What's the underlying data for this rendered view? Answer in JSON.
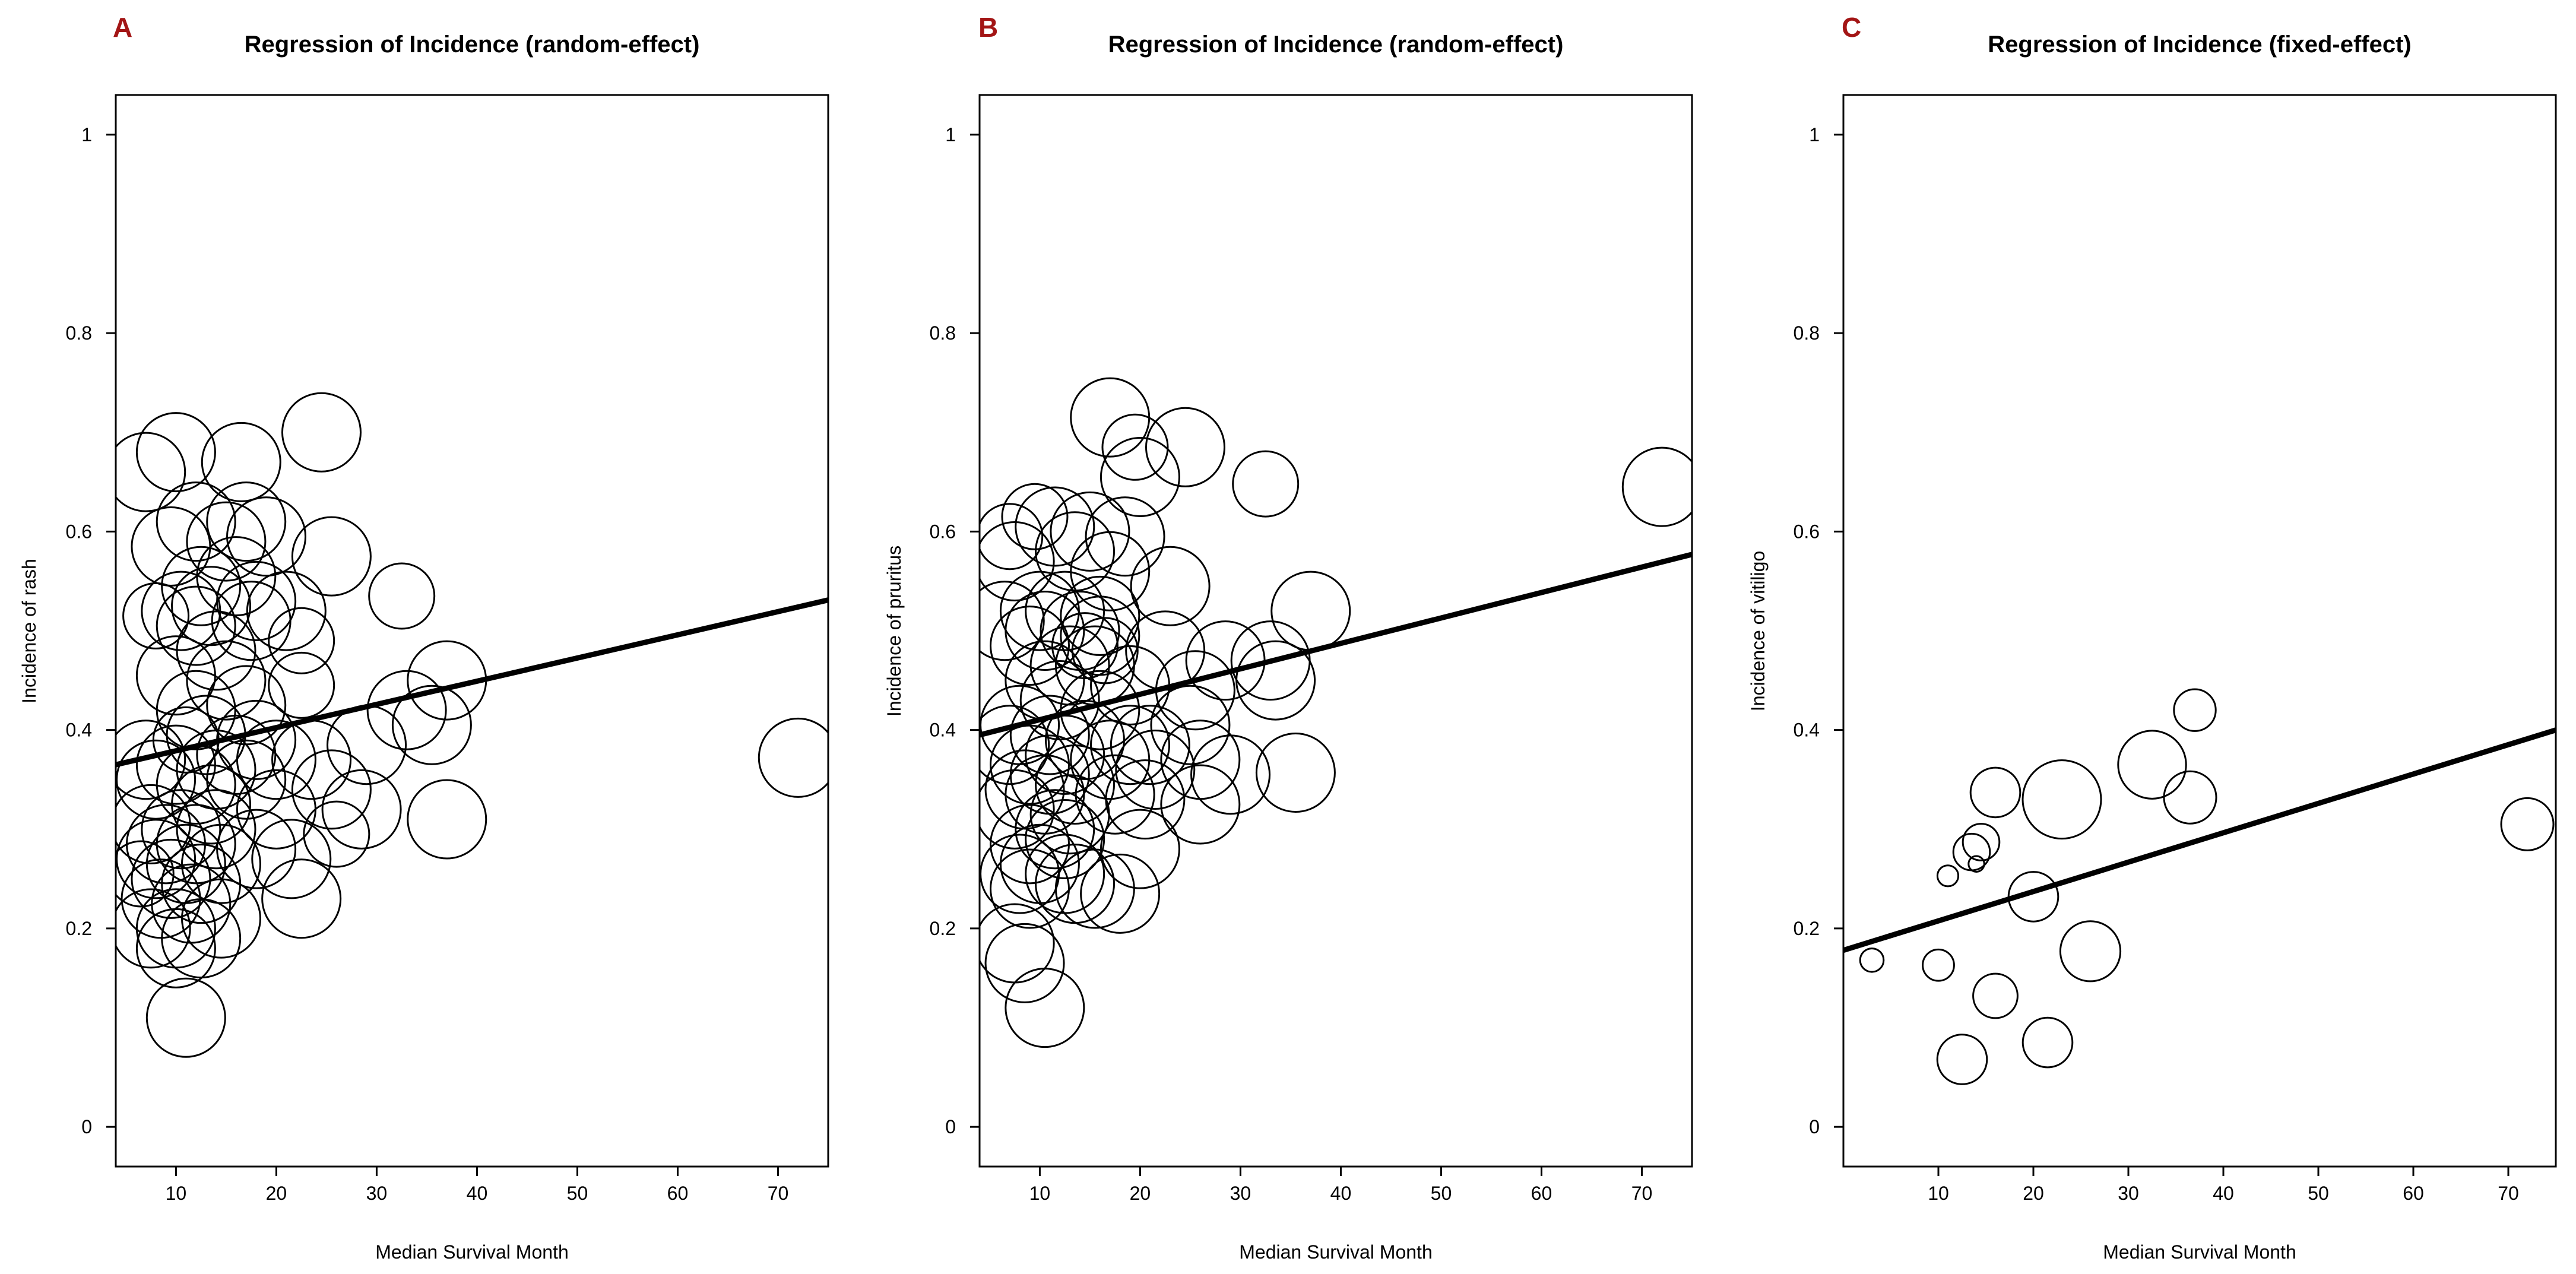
{
  "chart_data": [
    {
      "type": "scatter",
      "panel_label": "A",
      "title": "Regression of Incidence (random-effect)",
      "xlabel": "Median Survival Month",
      "ylabel": "Incidence of rash",
      "xlim": [
        4,
        75
      ],
      "ylim": [
        -0.04,
        1.04
      ],
      "xticks": [
        10,
        20,
        30,
        40,
        50,
        60,
        70
      ],
      "yticks": [
        0,
        0.2,
        0.4,
        0.6,
        0.8,
        1
      ],
      "grid": false,
      "regression_line": {
        "x": [
          4,
          75
        ],
        "y": [
          0.365,
          0.531
        ]
      },
      "points": [
        {
          "x": 7,
          "y": 0.66,
          "w": 3
        },
        {
          "x": 10,
          "y": 0.68,
          "w": 3
        },
        {
          "x": 16.5,
          "y": 0.67,
          "w": 3
        },
        {
          "x": 24.5,
          "y": 0.7,
          "w": 3
        },
        {
          "x": 12,
          "y": 0.61,
          "w": 3
        },
        {
          "x": 17,
          "y": 0.61,
          "w": 3
        },
        {
          "x": 19,
          "y": 0.595,
          "w": 3
        },
        {
          "x": 9.5,
          "y": 0.585,
          "w": 3
        },
        {
          "x": 15,
          "y": 0.59,
          "w": 3
        },
        {
          "x": 25.5,
          "y": 0.575,
          "w": 3
        },
        {
          "x": 12.5,
          "y": 0.545,
          "w": 3
        },
        {
          "x": 16,
          "y": 0.555,
          "w": 3
        },
        {
          "x": 32.5,
          "y": 0.535,
          "w": 2.5
        },
        {
          "x": 10.5,
          "y": 0.52,
          "w": 3
        },
        {
          "x": 13.5,
          "y": 0.525,
          "w": 3
        },
        {
          "x": 18,
          "y": 0.53,
          "w": 3
        },
        {
          "x": 21,
          "y": 0.52,
          "w": 3
        },
        {
          "x": 8,
          "y": 0.515,
          "w": 2.5
        },
        {
          "x": 12,
          "y": 0.505,
          "w": 3
        },
        {
          "x": 17.5,
          "y": 0.51,
          "w": 3
        },
        {
          "x": 22.5,
          "y": 0.49,
          "w": 2.5
        },
        {
          "x": 14,
          "y": 0.48,
          "w": 3
        },
        {
          "x": 10,
          "y": 0.455,
          "w": 3
        },
        {
          "x": 15,
          "y": 0.45,
          "w": 3
        },
        {
          "x": 22.5,
          "y": 0.445,
          "w": 2.5
        },
        {
          "x": 37,
          "y": 0.45,
          "w": 3
        },
        {
          "x": 12,
          "y": 0.42,
          "w": 3
        },
        {
          "x": 17,
          "y": 0.425,
          "w": 3
        },
        {
          "x": 33,
          "y": 0.42,
          "w": 3
        },
        {
          "x": 35.5,
          "y": 0.405,
          "w": 3
        },
        {
          "x": 29,
          "y": 0.385,
          "w": 3
        },
        {
          "x": 13,
          "y": 0.395,
          "w": 3
        },
        {
          "x": 18,
          "y": 0.39,
          "w": 3
        },
        {
          "x": 11,
          "y": 0.39,
          "w": 2.5
        },
        {
          "x": 16,
          "y": 0.375,
          "w": 3
        },
        {
          "x": 20,
          "y": 0.37,
          "w": 3
        },
        {
          "x": 7,
          "y": 0.37,
          "w": 3
        },
        {
          "x": 10,
          "y": 0.365,
          "w": 3
        },
        {
          "x": 14,
          "y": 0.36,
          "w": 3
        },
        {
          "x": 23.5,
          "y": 0.37,
          "w": 3
        },
        {
          "x": 72,
          "y": 0.372,
          "w": 3
        },
        {
          "x": 8,
          "y": 0.35,
          "w": 3
        },
        {
          "x": 12,
          "y": 0.345,
          "w": 3
        },
        {
          "x": 17,
          "y": 0.35,
          "w": 3
        },
        {
          "x": 25.5,
          "y": 0.34,
          "w": 3
        },
        {
          "x": 13.5,
          "y": 0.325,
          "w": 3
        },
        {
          "x": 20,
          "y": 0.32,
          "w": 3
        },
        {
          "x": 28.5,
          "y": 0.32,
          "w": 3
        },
        {
          "x": 37,
          "y": 0.31,
          "w": 3
        },
        {
          "x": 7.5,
          "y": 0.305,
          "w": 3
        },
        {
          "x": 10.5,
          "y": 0.3,
          "w": 3
        },
        {
          "x": 14,
          "y": 0.3,
          "w": 3
        },
        {
          "x": 26,
          "y": 0.295,
          "w": 2.5
        },
        {
          "x": 9,
          "y": 0.285,
          "w": 3
        },
        {
          "x": 12,
          "y": 0.285,
          "w": 3
        },
        {
          "x": 18,
          "y": 0.28,
          "w": 3
        },
        {
          "x": 21.5,
          "y": 0.27,
          "w": 3
        },
        {
          "x": 8,
          "y": 0.27,
          "w": 3
        },
        {
          "x": 11,
          "y": 0.265,
          "w": 3
        },
        {
          "x": 14.5,
          "y": 0.265,
          "w": 3
        },
        {
          "x": 6.5,
          "y": 0.255,
          "w": 2.5
        },
        {
          "x": 9.5,
          "y": 0.25,
          "w": 3
        },
        {
          "x": 12.5,
          "y": 0.245,
          "w": 3
        },
        {
          "x": 22.5,
          "y": 0.23,
          "w": 3
        },
        {
          "x": 8.5,
          "y": 0.23,
          "w": 3
        },
        {
          "x": 11.5,
          "y": 0.225,
          "w": 3
        },
        {
          "x": 14.5,
          "y": 0.21,
          "w": 3
        },
        {
          "x": 7.5,
          "y": 0.2,
          "w": 3
        },
        {
          "x": 10,
          "y": 0.2,
          "w": 3
        },
        {
          "x": 12.5,
          "y": 0.19,
          "w": 3
        },
        {
          "x": 10,
          "y": 0.18,
          "w": 3
        },
        {
          "x": 11,
          "y": 0.11,
          "w": 3
        }
      ]
    },
    {
      "type": "scatter",
      "panel_label": "B",
      "title": "Regression of Incidence (random-effect)",
      "xlabel": "Median Survival Month",
      "ylabel": "Incidence of pruritus",
      "xlim": [
        4,
        75
      ],
      "ylim": [
        -0.04,
        1.04
      ],
      "xticks": [
        10,
        20,
        30,
        40,
        50,
        60,
        70
      ],
      "yticks": [
        0,
        0.2,
        0.4,
        0.6,
        0.8,
        1
      ],
      "grid": false,
      "regression_line": {
        "x": [
          4,
          75
        ],
        "y": [
          0.395,
          0.577
        ]
      },
      "points": [
        {
          "x": 17,
          "y": 0.715,
          "w": 3
        },
        {
          "x": 19.5,
          "y": 0.685,
          "w": 2.5
        },
        {
          "x": 24.5,
          "y": 0.685,
          "w": 3
        },
        {
          "x": 20,
          "y": 0.655,
          "w": 3
        },
        {
          "x": 32.5,
          "y": 0.648,
          "w": 2.5
        },
        {
          "x": 72,
          "y": 0.645,
          "w": 3
        },
        {
          "x": 9.5,
          "y": 0.615,
          "w": 2.5
        },
        {
          "x": 11.5,
          "y": 0.605,
          "w": 3
        },
        {
          "x": 15,
          "y": 0.6,
          "w": 3
        },
        {
          "x": 18.5,
          "y": 0.595,
          "w": 3
        },
        {
          "x": 7,
          "y": 0.595,
          "w": 2.5
        },
        {
          "x": 13.5,
          "y": 0.58,
          "w": 3
        },
        {
          "x": 7.5,
          "y": 0.57,
          "w": 3
        },
        {
          "x": 17,
          "y": 0.56,
          "w": 3
        },
        {
          "x": 23,
          "y": 0.545,
          "w": 3
        },
        {
          "x": 10,
          "y": 0.52,
          "w": 3
        },
        {
          "x": 12.5,
          "y": 0.52,
          "w": 3
        },
        {
          "x": 16,
          "y": 0.515,
          "w": 3
        },
        {
          "x": 37,
          "y": 0.52,
          "w": 3
        },
        {
          "x": 6.5,
          "y": 0.51,
          "w": 3
        },
        {
          "x": 10.5,
          "y": 0.5,
          "w": 3
        },
        {
          "x": 14,
          "y": 0.5,
          "w": 3
        },
        {
          "x": 16,
          "y": 0.495,
          "w": 3
        },
        {
          "x": 9,
          "y": 0.485,
          "w": 3
        },
        {
          "x": 14.5,
          "y": 0.485,
          "w": 2.5
        },
        {
          "x": 16.5,
          "y": 0.48,
          "w": 2.5
        },
        {
          "x": 22.5,
          "y": 0.48,
          "w": 3
        },
        {
          "x": 28.5,
          "y": 0.47,
          "w": 3
        },
        {
          "x": 33,
          "y": 0.47,
          "w": 3
        },
        {
          "x": 13,
          "y": 0.465,
          "w": 3
        },
        {
          "x": 15.5,
          "y": 0.465,
          "w": 3
        },
        {
          "x": 10.5,
          "y": 0.45,
          "w": 3
        },
        {
          "x": 19,
          "y": 0.445,
          "w": 3
        },
        {
          "x": 25.5,
          "y": 0.44,
          "w": 3
        },
        {
          "x": 33.5,
          "y": 0.45,
          "w": 3
        },
        {
          "x": 12,
          "y": 0.43,
          "w": 3
        },
        {
          "x": 16,
          "y": 0.42,
          "w": 3
        },
        {
          "x": 25,
          "y": 0.405,
          "w": 3
        },
        {
          "x": 8,
          "y": 0.405,
          "w": 3
        },
        {
          "x": 11,
          "y": 0.395,
          "w": 3
        },
        {
          "x": 14.5,
          "y": 0.39,
          "w": 3
        },
        {
          "x": 19,
          "y": 0.385,
          "w": 3
        },
        {
          "x": 21,
          "y": 0.385,
          "w": 3
        },
        {
          "x": 7,
          "y": 0.385,
          "w": 3
        },
        {
          "x": 12.5,
          "y": 0.375,
          "w": 3
        },
        {
          "x": 17,
          "y": 0.37,
          "w": 3
        },
        {
          "x": 26,
          "y": 0.37,
          "w": 3
        },
        {
          "x": 9,
          "y": 0.365,
          "w": 3
        },
        {
          "x": 11,
          "y": 0.355,
          "w": 3
        },
        {
          "x": 21.5,
          "y": 0.36,
          "w": 3
        },
        {
          "x": 29,
          "y": 0.355,
          "w": 3
        },
        {
          "x": 35.5,
          "y": 0.357,
          "w": 3
        },
        {
          "x": 13.5,
          "y": 0.345,
          "w": 3
        },
        {
          "x": 8.5,
          "y": 0.34,
          "w": 3
        },
        {
          "x": 10.5,
          "y": 0.335,
          "w": 3
        },
        {
          "x": 17.5,
          "y": 0.335,
          "w": 3
        },
        {
          "x": 20.5,
          "y": 0.33,
          "w": 3
        },
        {
          "x": 26,
          "y": 0.325,
          "w": 3
        },
        {
          "x": 7.5,
          "y": 0.32,
          "w": 3
        },
        {
          "x": 13,
          "y": 0.315,
          "w": 3
        },
        {
          "x": 11.5,
          "y": 0.3,
          "w": 3
        },
        {
          "x": 12.5,
          "y": 0.29,
          "w": 3
        },
        {
          "x": 9,
          "y": 0.285,
          "w": 3
        },
        {
          "x": 20,
          "y": 0.28,
          "w": 3
        },
        {
          "x": 10,
          "y": 0.265,
          "w": 3
        },
        {
          "x": 12.5,
          "y": 0.255,
          "w": 3
        },
        {
          "x": 8,
          "y": 0.255,
          "w": 3
        },
        {
          "x": 13.5,
          "y": 0.245,
          "w": 3
        },
        {
          "x": 9,
          "y": 0.24,
          "w": 3
        },
        {
          "x": 15.5,
          "y": 0.24,
          "w": 3
        },
        {
          "x": 18,
          "y": 0.235,
          "w": 3
        },
        {
          "x": 7.5,
          "y": 0.185,
          "w": 3
        },
        {
          "x": 8.5,
          "y": 0.165,
          "w": 3
        },
        {
          "x": 10.5,
          "y": 0.12,
          "w": 3
        }
      ]
    },
    {
      "type": "scatter",
      "panel_label": "C",
      "title": "Regression of Incidence (fixed-effect)",
      "xlabel": "Median Survival Month",
      "ylabel": "Incidence of vitiligo",
      "xlim": [
        0,
        75
      ],
      "ylim": [
        -0.04,
        1.04
      ],
      "xticks": [
        10,
        20,
        30,
        40,
        50,
        60,
        70
      ],
      "yticks": [
        0,
        0.2,
        0.4,
        0.6,
        0.8,
        1
      ],
      "grid": false,
      "regression_line": {
        "x": [
          0,
          75
        ],
        "y": [
          0.178,
          0.4
        ]
      },
      "points": [
        {
          "x": 37,
          "y": 0.42,
          "w": 1.6
        },
        {
          "x": 32.5,
          "y": 0.365,
          "w": 2.6
        },
        {
          "x": 16,
          "y": 0.337,
          "w": 1.9
        },
        {
          "x": 36.5,
          "y": 0.332,
          "w": 2.0
        },
        {
          "x": 23,
          "y": 0.33,
          "w": 3.0
        },
        {
          "x": 72,
          "y": 0.305,
          "w": 2.0
        },
        {
          "x": 14.5,
          "y": 0.287,
          "w": 1.4
        },
        {
          "x": 13.5,
          "y": 0.277,
          "w": 1.4
        },
        {
          "x": 14,
          "y": 0.265,
          "w": 0.6
        },
        {
          "x": 11,
          "y": 0.253,
          "w": 0.8
        },
        {
          "x": 20,
          "y": 0.232,
          "w": 1.9
        },
        {
          "x": 26,
          "y": 0.177,
          "w": 2.3
        },
        {
          "x": 3,
          "y": 0.168,
          "w": 0.9
        },
        {
          "x": 10,
          "y": 0.163,
          "w": 1.2
        },
        {
          "x": 16,
          "y": 0.132,
          "w": 1.7
        },
        {
          "x": 21.5,
          "y": 0.085,
          "w": 1.9
        },
        {
          "x": 12.5,
          "y": 0.068,
          "w": 1.9
        }
      ]
    }
  ]
}
